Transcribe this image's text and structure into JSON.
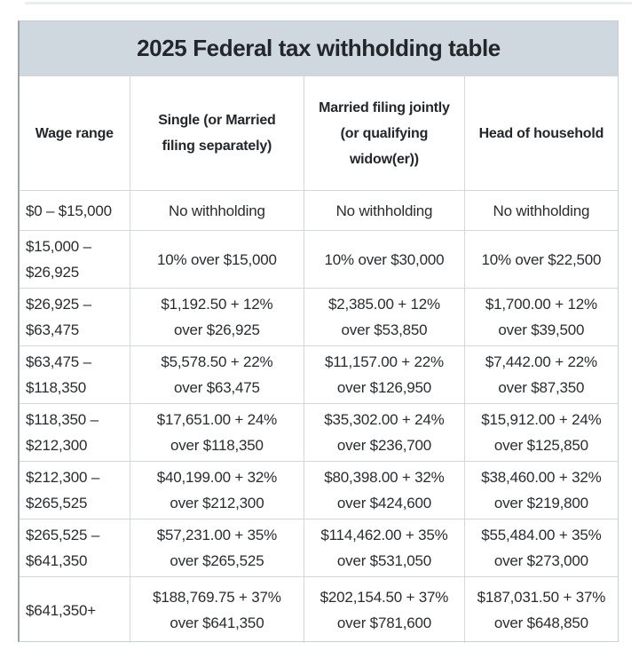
{
  "colors": {
    "title_bar_bg": "#cfd8df",
    "grid_line": "#d1d7db",
    "outer_border": "#c6cfd5",
    "outer_border_left": "#9aa4ab",
    "title_text": "#23262a",
    "cell_text": "#292c2f",
    "page_background": "#ffffff"
  },
  "chart_data": {
    "type": "table",
    "title": "2025 Federal tax withholding table",
    "columns": [
      "Wage range",
      "Single (or Married\nfiling separately)",
      "Married filing jointly\n(or qualifying\nwidow(er))",
      "Head of household"
    ],
    "rows": [
      [
        "$0 – $15,000",
        "No withholding",
        "No withholding",
        "No withholding"
      ],
      [
        "$15,000 –\n$26,925",
        "10% over $15,000",
        "10% over $30,000",
        "10% over $22,500"
      ],
      [
        "$26,925 –\n$63,475",
        "$1,192.50 + 12%\nover $26,925",
        "$2,385.00 + 12%\nover $53,850",
        "$1,700.00 + 12%\nover $39,500"
      ],
      [
        "$63,475 –\n$118,350",
        "$5,578.50 + 22%\nover $63,475",
        "$11,157.00 + 22%\nover $126,950",
        "$7,442.00 + 22%\nover $87,350"
      ],
      [
        "$118,350 –\n$212,300",
        "$17,651.00 + 24%\nover $118,350",
        "$35,302.00 + 24%\nover $236,700",
        "$15,912.00 + 24%\nover $125,850"
      ],
      [
        "$212,300 –\n$265,525",
        "$40,199.00 + 32%\nover $212,300",
        "$80,398.00 + 32%\nover $424,600",
        "$38,460.00 + 32%\nover $219,800"
      ],
      [
        "$265,525 –\n$641,350",
        "$57,231.00 + 35%\nover $265,525",
        "$114,462.00 + 35%\nover $531,050",
        "$55,484.00 + 35%\nover $273,000"
      ],
      [
        "$641,350+",
        "$188,769.75 + 37%\nover $641,350",
        "$202,154.50 + 37%\nover $781,600",
        "$187,031.50 + 37%\nover $648,850"
      ]
    ]
  }
}
